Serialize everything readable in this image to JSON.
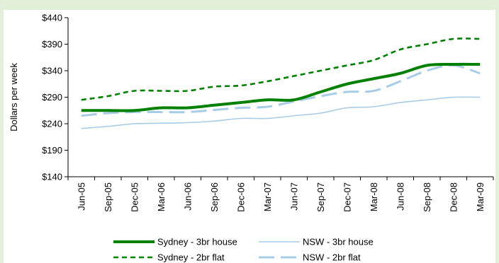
{
  "chart_data": {
    "type": "line",
    "title": "",
    "xlabel": "",
    "ylabel": "Dollars per week",
    "ylim": [
      140,
      440
    ],
    "y_ticks": [
      "$140",
      "$190",
      "$240",
      "$290",
      "$340",
      "$390",
      "$440"
    ],
    "y_tick_values": [
      140,
      190,
      240,
      290,
      340,
      390,
      440
    ],
    "categories": [
      "Jun-05",
      "Sep-05",
      "Dec-05",
      "Mar-06",
      "Jun-06",
      "Sep-06",
      "Dec-06",
      "Mar-07",
      "Jun-07",
      "Sep-07",
      "Dec-07",
      "Mar-08",
      "Jun-08",
      "Sep-08",
      "Dec-08",
      "Mar-09"
    ],
    "grid": false,
    "legend_position": "bottom",
    "series": [
      {
        "name": "Sydney - 3br house",
        "color": "#008000",
        "style": "solid-thick",
        "values": [
          265,
          265,
          265,
          270,
          270,
          275,
          280,
          285,
          285,
          300,
          315,
          325,
          335,
          350,
          352,
          352
        ]
      },
      {
        "name": "NSW - 3br house",
        "color": "#a8cce6",
        "style": "solid-thin",
        "values": [
          231,
          235,
          240,
          241,
          242,
          245,
          250,
          250,
          255,
          260,
          270,
          272,
          280,
          285,
          290,
          290
        ]
      },
      {
        "name": "Sydney - 2br flat",
        "color": "#008000",
        "style": "dashed",
        "values": [
          285,
          292,
          302,
          302,
          302,
          310,
          312,
          320,
          330,
          340,
          350,
          360,
          380,
          390,
          400,
          400
        ]
      },
      {
        "name": "NSW - 2br flat",
        "color": "#a8cce6",
        "style": "long-dash",
        "values": [
          255,
          260,
          262,
          262,
          262,
          266,
          270,
          272,
          282,
          292,
          300,
          302,
          320,
          340,
          350,
          335
        ]
      }
    ]
  }
}
